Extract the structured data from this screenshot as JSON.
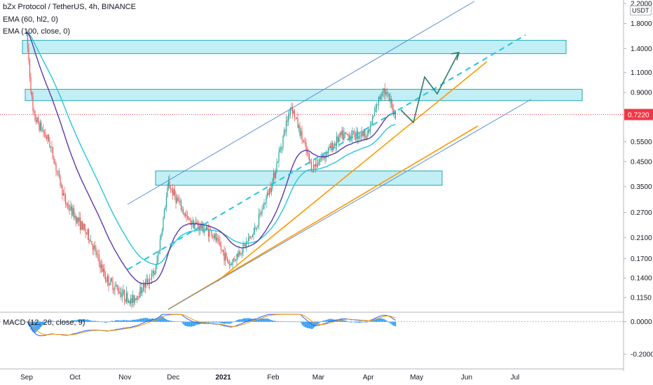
{
  "header": {
    "symbol_line": "bZx Protocol / TetherUS, 4h, BINANCE",
    "indicators": [
      "EMA (60, hl2, 0)",
      "EMA (100, close, 0)"
    ],
    "macd_label": "MACD (12, 26, close, 9)",
    "currency": "USDT"
  },
  "price_scale": {
    "ticks": [
      "2.2000",
      "1.8000",
      "1.4000",
      "1.1000",
      "0.9000",
      "0.7220",
      "0.5500",
      "0.4500",
      "0.3500",
      "0.2700",
      "0.2100",
      "0.1700",
      "0.1400",
      "0.1150"
    ],
    "current_price": "0.7220",
    "current_color": "#f23645"
  },
  "macd_scale": {
    "ticks": [
      "0.0000",
      "-0.2000"
    ]
  },
  "time_axis": {
    "labels": [
      "Sep",
      "Oct",
      "Nov",
      "Dec",
      "2021",
      "Feb",
      "Mar",
      "Apr",
      "May",
      "Jun",
      "Jul"
    ]
  },
  "colors": {
    "zone": "#4dd0e1",
    "ema60": "#5c3aa8",
    "ema100": "#26c6da",
    "up": "#26a69a",
    "down": "#ef5350",
    "orange": "#ff9800",
    "blue": "#5b8ed6",
    "arrow": "#2e7d6e",
    "macd": "#2196f3"
  },
  "chart_data": {
    "type": "candlestick",
    "title": "bZx Protocol / TetherUS, 4h, BINANCE",
    "scale": "log",
    "ylim": [
      0.1,
      2.2
    ],
    "x_labels": [
      "Sep",
      "Oct",
      "Nov",
      "Dec",
      "2021",
      "Feb",
      "Mar",
      "Apr",
      "May",
      "Jun",
      "Jul"
    ],
    "price_path": [
      {
        "date": "2020-09-01",
        "price": 1.6
      },
      {
        "date": "2020-09-05",
        "price": 0.72
      },
      {
        "date": "2020-09-15",
        "price": 0.55
      },
      {
        "date": "2020-09-25",
        "price": 0.3
      },
      {
        "date": "2020-10-10",
        "price": 0.21
      },
      {
        "date": "2020-10-20",
        "price": 0.14
      },
      {
        "date": "2020-11-05",
        "price": 0.11
      },
      {
        "date": "2020-11-20",
        "price": 0.15
      },
      {
        "date": "2020-11-28",
        "price": 0.36
      },
      {
        "date": "2020-12-10",
        "price": 0.25
      },
      {
        "date": "2020-12-25",
        "price": 0.22
      },
      {
        "date": "2021-01-05",
        "price": 0.16
      },
      {
        "date": "2021-01-20",
        "price": 0.22
      },
      {
        "date": "2021-02-01",
        "price": 0.38
      },
      {
        "date": "2021-02-12",
        "price": 0.8
      },
      {
        "date": "2021-02-25",
        "price": 0.42
      },
      {
        "date": "2021-03-15",
        "price": 0.58
      },
      {
        "date": "2021-04-01",
        "price": 0.6
      },
      {
        "date": "2021-04-10",
        "price": 0.95
      },
      {
        "date": "2021-04-18",
        "price": 0.722
      }
    ],
    "zones": [
      {
        "low": 1.33,
        "high": 1.52
      },
      {
        "low": 0.83,
        "high": 0.93
      },
      {
        "low": 0.355,
        "high": 0.41
      }
    ],
    "macd": {
      "label": "MACD (12, 26, close, 9)",
      "ylim": [
        -0.26,
        0.05
      ]
    }
  }
}
